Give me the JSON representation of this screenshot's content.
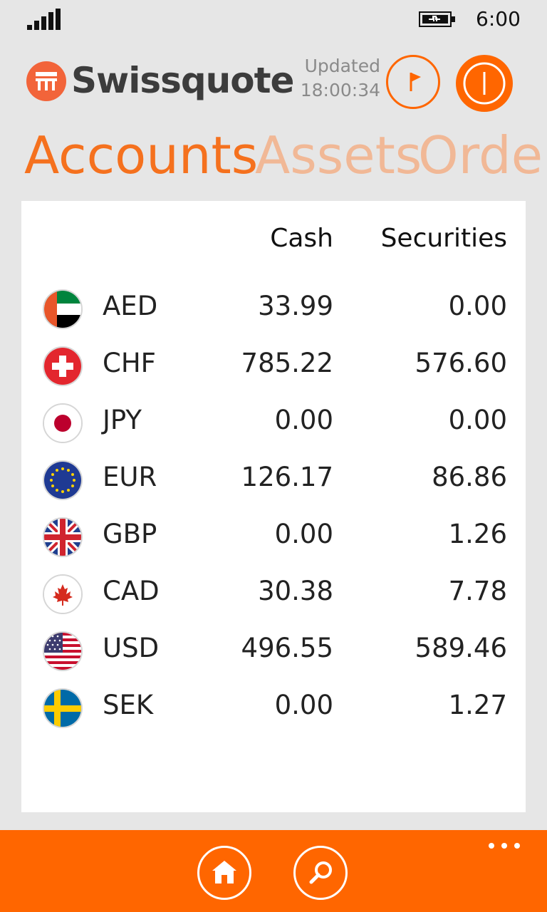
{
  "status_bar": {
    "time": "6:00",
    "icons": [
      "signal-icon",
      "battery-charging-icon"
    ]
  },
  "header": {
    "brand": "Swissquote",
    "updated_label": "Updated",
    "updated_time": "18:00:34",
    "buttons": [
      "flag-icon",
      "power-icon"
    ]
  },
  "pivot": {
    "items": [
      "Accounts",
      "Assets",
      "Order"
    ],
    "active": "Accounts"
  },
  "table": {
    "columns": {
      "cash": "Cash",
      "securities": "Securities"
    },
    "rows": [
      {
        "code": "AED",
        "cash": "33.99",
        "securities": "0.00",
        "flag": "uae-flag-icon"
      },
      {
        "code": "CHF",
        "cash": "785.22",
        "securities": "576.60",
        "flag": "switzerland-flag-icon"
      },
      {
        "code": "JPY",
        "cash": "0.00",
        "securities": "0.00",
        "flag": "japan-flag-icon"
      },
      {
        "code": "EUR",
        "cash": "126.17",
        "securities": "86.86",
        "flag": "eu-flag-icon"
      },
      {
        "code": "GBP",
        "cash": "0.00",
        "securities": "1.26",
        "flag": "uk-flag-icon"
      },
      {
        "code": "CAD",
        "cash": "30.38",
        "securities": "7.78",
        "flag": "canada-flag-icon"
      },
      {
        "code": "USD",
        "cash": "496.55",
        "securities": "589.46",
        "flag": "usa-flag-icon"
      },
      {
        "code": "SEK",
        "cash": "0.00",
        "securities": "1.27",
        "flag": "sweden-flag-icon"
      }
    ]
  },
  "app_bar": {
    "buttons": [
      "home-icon",
      "search-icon"
    ],
    "more": "more-icon"
  },
  "colors": {
    "accent": "#ff6600",
    "pivot_active": "#f5711e",
    "pivot_inactive": "#f1b896",
    "background": "#e6e6e6"
  }
}
